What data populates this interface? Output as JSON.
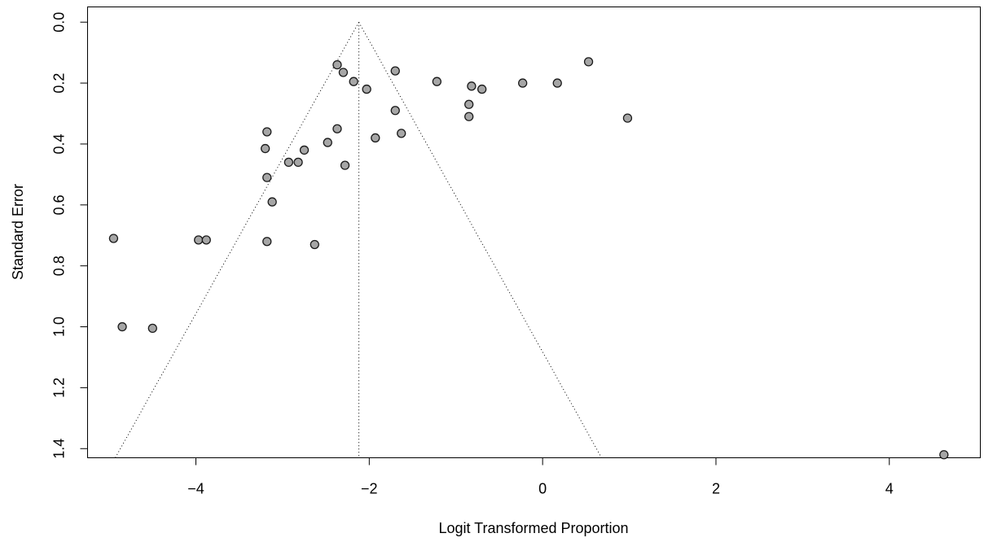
{
  "chart_data": {
    "type": "scatter",
    "title": "",
    "xlabel": "Logit Transformed Proportion",
    "ylabel": "Standard Error",
    "xlim": [
      -5.25,
      5.05
    ],
    "ylim": [
      1.43,
      -0.05
    ],
    "y_reversed": true,
    "x_ticks": [
      -4,
      -2,
      0,
      2,
      4
    ],
    "x_tick_labels": [
      "−4",
      "−2",
      "0",
      "2",
      "4"
    ],
    "y_ticks": [
      0.0,
      0.2,
      0.4,
      0.6,
      0.8,
      1.0,
      1.2,
      1.4
    ],
    "y_tick_labels": [
      "0.0",
      "0.2",
      "0.4",
      "0.6",
      "0.8",
      "1.0",
      "1.2",
      "1.4"
    ],
    "grid": false,
    "legend": "none",
    "point_fill_color": "#a6a6a6",
    "point_edge_color": "#1a1a1a",
    "funnel": {
      "center": -2.12,
      "apex_se": 0.0,
      "base_se": 1.43,
      "left_base_x": -4.93,
      "right_base_x": 0.68
    },
    "points": [
      {
        "x": -2.37,
        "y": 0.14
      },
      {
        "x": -2.3,
        "y": 0.165
      },
      {
        "x": -2.18,
        "y": 0.195
      },
      {
        "x": -2.03,
        "y": 0.22
      },
      {
        "x": -1.7,
        "y": 0.16
      },
      {
        "x": -1.22,
        "y": 0.195
      },
      {
        "x": -0.82,
        "y": 0.21
      },
      {
        "x": -0.7,
        "y": 0.22
      },
      {
        "x": -0.23,
        "y": 0.2
      },
      {
        "x": 0.17,
        "y": 0.2
      },
      {
        "x": 0.53,
        "y": 0.13
      },
      {
        "x": -0.85,
        "y": 0.27
      },
      {
        "x": -0.85,
        "y": 0.31
      },
      {
        "x": 0.98,
        "y": 0.315
      },
      {
        "x": -1.7,
        "y": 0.29
      },
      {
        "x": -1.63,
        "y": 0.365
      },
      {
        "x": -1.93,
        "y": 0.38
      },
      {
        "x": -2.37,
        "y": 0.35
      },
      {
        "x": -2.48,
        "y": 0.395
      },
      {
        "x": -3.18,
        "y": 0.36
      },
      {
        "x": -3.2,
        "y": 0.415
      },
      {
        "x": -2.75,
        "y": 0.42
      },
      {
        "x": -2.93,
        "y": 0.46
      },
      {
        "x": -2.82,
        "y": 0.46
      },
      {
        "x": -2.28,
        "y": 0.47
      },
      {
        "x": -3.18,
        "y": 0.51
      },
      {
        "x": -3.12,
        "y": 0.59
      },
      {
        "x": -4.95,
        "y": 0.71
      },
      {
        "x": -3.97,
        "y": 0.715
      },
      {
        "x": -3.88,
        "y": 0.715
      },
      {
        "x": -3.18,
        "y": 0.72
      },
      {
        "x": -2.63,
        "y": 0.73
      },
      {
        "x": -4.85,
        "y": 1.0
      },
      {
        "x": -4.5,
        "y": 1.005
      },
      {
        "x": 4.63,
        "y": 1.42
      }
    ]
  }
}
